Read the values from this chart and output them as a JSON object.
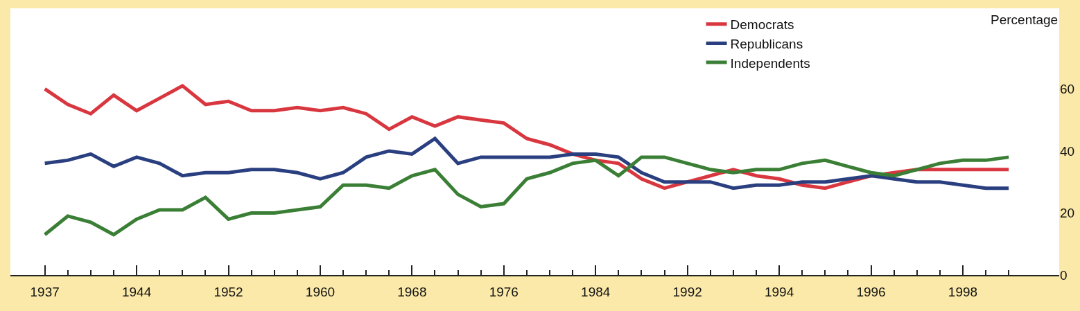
{
  "chart_data": {
    "type": "line",
    "ylabel": "Percentage",
    "categories": [
      "1937",
      null,
      null,
      null,
      "1944",
      null,
      null,
      null,
      "1952",
      null,
      null,
      null,
      "1960",
      null,
      null,
      null,
      "1968",
      null,
      null,
      null,
      "1976",
      null,
      null,
      null,
      "1984",
      null,
      null,
      null,
      "1992",
      null,
      null,
      null,
      "1994",
      null,
      null,
      null,
      "1996",
      null,
      null,
      null,
      "1998",
      null,
      null
    ],
    "series": [
      {
        "name": "Democrats",
        "color": "#d9373f",
        "values": [
          60,
          55,
          52,
          58,
          53,
          57,
          61,
          55,
          56,
          53,
          53,
          54,
          53,
          54,
          52,
          47,
          51,
          48,
          51,
          50,
          49,
          44,
          42,
          39,
          37,
          36,
          31,
          28,
          30,
          32,
          34,
          32,
          31,
          29,
          28,
          30,
          32,
          33,
          34,
          34,
          34,
          34,
          34
        ]
      },
      {
        "name": "Republicans",
        "color": "#2a3f7f",
        "values": [
          36,
          37,
          39,
          35,
          38,
          36,
          32,
          33,
          33,
          34,
          34,
          33,
          31,
          33,
          38,
          40,
          39,
          44,
          36,
          38,
          38,
          38,
          38,
          39,
          39,
          38,
          33,
          30,
          30,
          30,
          28,
          29,
          29,
          30,
          30,
          31,
          32,
          31,
          30,
          30,
          29,
          28,
          28
        ]
      },
      {
        "name": "Independents",
        "color": "#3a7f35",
        "values": [
          13,
          19,
          17,
          13,
          18,
          21,
          21,
          25,
          18,
          20,
          20,
          21,
          22,
          29,
          29,
          28,
          32,
          34,
          26,
          22,
          23,
          31,
          33,
          36,
          37,
          32,
          38,
          38,
          36,
          34,
          33,
          34,
          34,
          36,
          37,
          35,
          33,
          32,
          34,
          36,
          37,
          37,
          38
        ]
      }
    ],
    "ylim": [
      0,
      86
    ],
    "yticks": [
      0,
      20,
      40,
      60
    ],
    "legend": "top right",
    "line_style": "solid"
  }
}
